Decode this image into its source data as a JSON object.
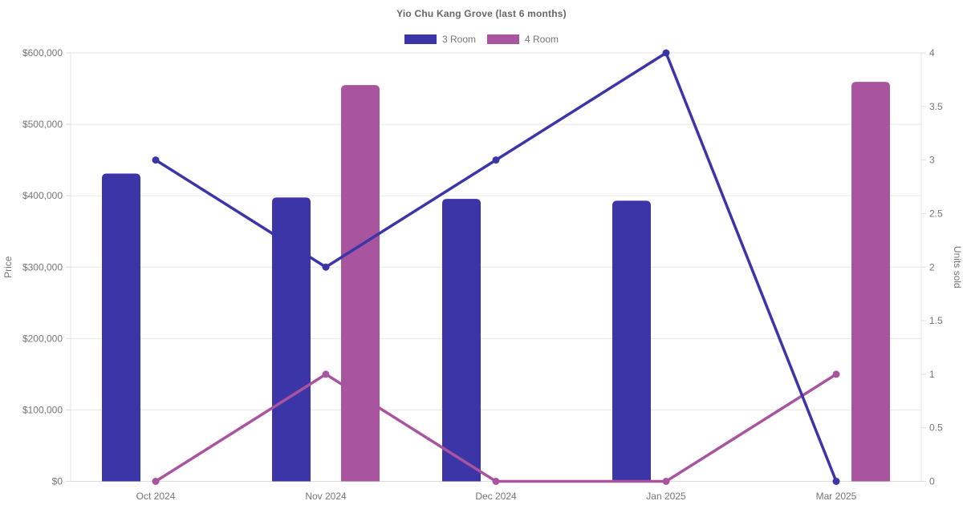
{
  "header": {
    "title": "Yio Chu Kang Grove (last 6 months)"
  },
  "legend": {
    "items": [
      {
        "label": "3 Room",
        "color": "#3b35a8"
      },
      {
        "label": "4 Room",
        "color": "#a8549e"
      }
    ]
  },
  "chart_data": {
    "type": "combo_bar_line",
    "title": "Yio Chu Kang Grove (last 6 months)",
    "categories": [
      "Oct 2024",
      "Nov 2024",
      "Dec 2024",
      "Jan 2025",
      "Mar 2025"
    ],
    "series": [
      {
        "name": "3 Room",
        "type": "bar",
        "axis": "left",
        "color": "#3b35a8",
        "values": [
          431000,
          397500,
          395500,
          393000,
          null
        ]
      },
      {
        "name": "4 Room",
        "type": "bar",
        "axis": "left",
        "color": "#a8549e",
        "values": [
          null,
          555000,
          null,
          null,
          559500
        ]
      },
      {
        "name": "3 Room",
        "type": "line",
        "axis": "right",
        "color": "#3b35a8",
        "marker": "circle",
        "values": [
          3,
          2,
          3,
          4,
          0
        ]
      },
      {
        "name": "4 Room",
        "type": "line",
        "axis": "right",
        "color": "#a8549e",
        "marker": "circle",
        "values": [
          0,
          1,
          0,
          0,
          1
        ]
      }
    ],
    "left_axis": {
      "title": "Price",
      "min": 0,
      "max": 600000,
      "tick_step": 100000,
      "tick_labels": [
        "$0",
        "$100,000",
        "$200,000",
        "$300,000",
        "$400,000",
        "$500,000",
        "$600,000"
      ]
    },
    "right_axis": {
      "title": "Units sold",
      "min": 0,
      "max": 4,
      "tick_step": 0.5,
      "tick_labels": [
        "0",
        "0.5",
        "1",
        "1.5",
        "2",
        "2.5",
        "3",
        "3.5",
        "4"
      ]
    },
    "grid": {
      "horizontal": true,
      "vertical": false
    },
    "legend_position": "top"
  },
  "style": {
    "background": "#ffffff",
    "grid_color": "#e6e6e6",
    "tick_color": "#dcdcdc",
    "axis_text_color": "#757575",
    "title_color": "#666666"
  }
}
